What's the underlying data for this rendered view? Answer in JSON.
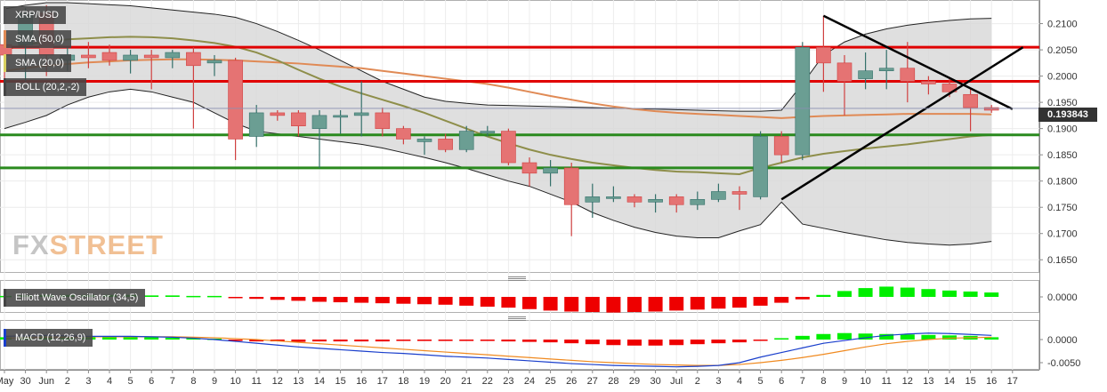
{
  "chart_data": [
    {
      "type": "candlestick",
      "pair": "XRP/USD",
      "indicators": [
        "SMA (50,0)",
        "SMA (20,0)",
        "BOLL (20,2,-2)"
      ],
      "ylim": [
        0.1625,
        0.2145
      ],
      "y_ticks": [
        "0.2100",
        "0.2050",
        "0.2000",
        "0.1950",
        "0.1900",
        "0.1850",
        "0.1800",
        "0.1750",
        "0.1700",
        "0.1650"
      ],
      "x_ticks": [
        "May",
        "30",
        "Jun",
        "2",
        "3",
        "4",
        "5",
        "6",
        "7",
        "8",
        "9",
        "10",
        "11",
        "12",
        "13",
        "14",
        "15",
        "16",
        "17",
        "18",
        "19",
        "20",
        "21",
        "22",
        "23",
        "24",
        "25",
        "26",
        "27",
        "28",
        "29",
        "30",
        "Jul",
        "2",
        "3",
        "4",
        "5",
        "6",
        "7",
        "8",
        "9",
        "10",
        "11",
        "12",
        "13",
        "14",
        "15",
        "16",
        "17"
      ],
      "last_price": "0.193843",
      "candles": [
        {
          "o": 0.206,
          "h": 0.2085,
          "l": 0.1965,
          "c": 0.204
        },
        {
          "o": 0.206,
          "h": 0.213,
          "l": 0.199,
          "c": 0.212
        },
        {
          "o": 0.212,
          "h": 0.2135,
          "l": 0.2,
          "c": 0.204
        },
        {
          "o": 0.203,
          "h": 0.2055,
          "l": 0.201,
          "c": 0.204
        },
        {
          "o": 0.204,
          "h": 0.2065,
          "l": 0.2015,
          "c": 0.2035
        },
        {
          "o": 0.2045,
          "h": 0.206,
          "l": 0.202,
          "c": 0.203
        },
        {
          "o": 0.203,
          "h": 0.205,
          "l": 0.2005,
          "c": 0.204
        },
        {
          "o": 0.204,
          "h": 0.205,
          "l": 0.1975,
          "c": 0.2035
        },
        {
          "o": 0.2035,
          "h": 0.205,
          "l": 0.2015,
          "c": 0.2045
        },
        {
          "o": 0.2045,
          "h": 0.2055,
          "l": 0.19,
          "c": 0.202
        },
        {
          "o": 0.2025,
          "h": 0.204,
          "l": 0.2,
          "c": 0.203
        },
        {
          "o": 0.203,
          "h": 0.2035,
          "l": 0.184,
          "c": 0.188
        },
        {
          "o": 0.1885,
          "h": 0.1945,
          "l": 0.1865,
          "c": 0.193
        },
        {
          "o": 0.193,
          "h": 0.1935,
          "l": 0.1915,
          "c": 0.1925
        },
        {
          "o": 0.193,
          "h": 0.1935,
          "l": 0.1885,
          "c": 0.1905
        },
        {
          "o": 0.19,
          "h": 0.1935,
          "l": 0.1825,
          "c": 0.1925
        },
        {
          "o": 0.1925,
          "h": 0.1935,
          "l": 0.189,
          "c": 0.1925
        },
        {
          "o": 0.1925,
          "h": 0.199,
          "l": 0.1885,
          "c": 0.193
        },
        {
          "o": 0.193,
          "h": 0.194,
          "l": 0.1885,
          "c": 0.19
        },
        {
          "o": 0.19,
          "h": 0.1905,
          "l": 0.187,
          "c": 0.188
        },
        {
          "o": 0.1875,
          "h": 0.1885,
          "l": 0.185,
          "c": 0.188
        },
        {
          "o": 0.188,
          "h": 0.189,
          "l": 0.1855,
          "c": 0.186
        },
        {
          "o": 0.186,
          "h": 0.1905,
          "l": 0.1855,
          "c": 0.1895
        },
        {
          "o": 0.1895,
          "h": 0.1905,
          "l": 0.1885,
          "c": 0.1895
        },
        {
          "o": 0.1895,
          "h": 0.19,
          "l": 0.183,
          "c": 0.1835
        },
        {
          "o": 0.1835,
          "h": 0.1845,
          "l": 0.179,
          "c": 0.1815
        },
        {
          "o": 0.1815,
          "h": 0.184,
          "l": 0.179,
          "c": 0.1825
        },
        {
          "o": 0.1825,
          "h": 0.1835,
          "l": 0.1695,
          "c": 0.1755
        },
        {
          "o": 0.176,
          "h": 0.1795,
          "l": 0.173,
          "c": 0.177
        },
        {
          "o": 0.177,
          "h": 0.179,
          "l": 0.176,
          "c": 0.177
        },
        {
          "o": 0.177,
          "h": 0.1775,
          "l": 0.175,
          "c": 0.176
        },
        {
          "o": 0.176,
          "h": 0.1775,
          "l": 0.174,
          "c": 0.1765
        },
        {
          "o": 0.177,
          "h": 0.1775,
          "l": 0.174,
          "c": 0.1755
        },
        {
          "o": 0.1755,
          "h": 0.178,
          "l": 0.1745,
          "c": 0.1765
        },
        {
          "o": 0.1765,
          "h": 0.1795,
          "l": 0.176,
          "c": 0.178
        },
        {
          "o": 0.178,
          "h": 0.179,
          "l": 0.1745,
          "c": 0.1775
        },
        {
          "o": 0.177,
          "h": 0.1895,
          "l": 0.1765,
          "c": 0.1885
        },
        {
          "o": 0.1885,
          "h": 0.1895,
          "l": 0.1835,
          "c": 0.185
        },
        {
          "o": 0.185,
          "h": 0.2065,
          "l": 0.184,
          "c": 0.2055
        },
        {
          "o": 0.2055,
          "h": 0.2115,
          "l": 0.197,
          "c": 0.2025
        },
        {
          "o": 0.2025,
          "h": 0.204,
          "l": 0.1925,
          "c": 0.199
        },
        {
          "o": 0.1995,
          "h": 0.2045,
          "l": 0.1975,
          "c": 0.201
        },
        {
          "o": 0.201,
          "h": 0.205,
          "l": 0.1975,
          "c": 0.2015
        },
        {
          "o": 0.2015,
          "h": 0.2065,
          "l": 0.195,
          "c": 0.199
        },
        {
          "o": 0.199,
          "h": 0.2,
          "l": 0.1965,
          "c": 0.1985
        },
        {
          "o": 0.1985,
          "h": 0.1995,
          "l": 0.196,
          "c": 0.197
        },
        {
          "o": 0.1965,
          "h": 0.1975,
          "l": 0.1895,
          "c": 0.194
        },
        {
          "o": 0.194,
          "h": 0.1945,
          "l": 0.193,
          "c": 0.1935
        }
      ],
      "bollinger": {
        "upper": [
          0.2128,
          0.2135,
          0.214,
          0.214,
          0.2138,
          0.2136,
          0.2134,
          0.213,
          0.2126,
          0.2122,
          0.2118,
          0.2112,
          0.21,
          0.2085,
          0.2068,
          0.205,
          0.203,
          0.201,
          0.199,
          0.1975,
          0.196,
          0.1952,
          0.1948,
          0.1945,
          0.1944,
          0.1943,
          0.1942,
          0.1941,
          0.194,
          0.1939,
          0.1938,
          0.1937,
          0.1936,
          0.1935,
          0.1934,
          0.1933,
          0.1933,
          0.1935,
          0.1985,
          0.204,
          0.2065,
          0.208,
          0.209,
          0.2097,
          0.2102,
          0.2106,
          0.2109,
          0.211
        ],
        "middle": [
          0.205,
          0.206,
          0.2065,
          0.207,
          0.2072,
          0.2074,
          0.2075,
          0.2074,
          0.2072,
          0.2068,
          0.2063,
          0.2056,
          0.2045,
          0.203,
          0.2012,
          0.1995,
          0.198,
          0.1967,
          0.1955,
          0.1943,
          0.193,
          0.1915,
          0.19,
          0.1885,
          0.1872,
          0.186,
          0.185,
          0.1842,
          0.1835,
          0.183,
          0.1825,
          0.1821,
          0.1818,
          0.1817,
          0.1815,
          0.1813,
          0.1825,
          0.1835,
          0.1845,
          0.1852,
          0.1857,
          0.1862,
          0.1866,
          0.187,
          0.1875,
          0.188,
          0.1885,
          0.1888
        ],
        "lower": [
          0.19,
          0.1912,
          0.1925,
          0.1945,
          0.196,
          0.197,
          0.1975,
          0.197,
          0.196,
          0.195,
          0.193,
          0.191,
          0.1895,
          0.189,
          0.1885,
          0.188,
          0.1875,
          0.187,
          0.1863,
          0.1854,
          0.1845,
          0.1835,
          0.1824,
          0.1812,
          0.18,
          0.179,
          0.1775,
          0.176,
          0.174,
          0.1725,
          0.1712,
          0.1702,
          0.1695,
          0.1692,
          0.1692,
          0.1705,
          0.1717,
          0.176,
          0.1718,
          0.171,
          0.1702,
          0.1695,
          0.1688,
          0.1683,
          0.168,
          0.1678,
          0.168,
          0.1685
        ]
      },
      "sma_50": [
        0.201,
        0.2015,
        0.202,
        0.2023,
        0.2026,
        0.2028,
        0.203,
        0.2031,
        0.2032,
        0.2032,
        0.2031,
        0.203,
        0.2028,
        0.2026,
        0.2024,
        0.2021,
        0.2018,
        0.2015,
        0.201,
        0.2005,
        0.2,
        0.1995,
        0.199,
        0.1985,
        0.1978,
        0.197,
        0.1962,
        0.1955,
        0.1948,
        0.1942,
        0.1937,
        0.1933,
        0.193,
        0.1928,
        0.1926,
        0.1924,
        0.1922,
        0.192,
        0.1922,
        0.1924,
        0.1925,
        0.1926,
        0.1927,
        0.1928,
        0.1928,
        0.1928,
        0.1928,
        0.1927
      ],
      "horizontal_levels": [
        0.2055,
        0.199,
        0.1888,
        0.1825
      ],
      "trendlines": [
        {
          "x1": 39,
          "y1": 0.2115,
          "x2": 48,
          "y2": 0.1937
        },
        {
          "x1": 37,
          "y1": 0.1765,
          "x2": 48.5,
          "y2": 0.2055
        }
      ]
    },
    {
      "type": "bar",
      "title": "Elliott Wave Oscillator (34,5)",
      "y_ticks": [
        "0.0000"
      ],
      "values": [
        0.0002,
        0.0003,
        0.0004,
        0.0004,
        0.0004,
        0.0004,
        0.0004,
        0.0003,
        0.0003,
        0.0002,
        0.0002,
        -0.0002,
        -0.0004,
        -0.0006,
        -0.0008,
        -0.001,
        -0.0011,
        -0.0012,
        -0.0013,
        -0.0014,
        -0.0015,
        -0.0016,
        -0.0018,
        -0.002,
        -0.0022,
        -0.0025,
        -0.0028,
        -0.003,
        -0.0031,
        -0.0032,
        -0.0031,
        -0.003,
        -0.0028,
        -0.0026,
        -0.0024,
        -0.0022,
        -0.0018,
        -0.0012,
        -0.0005,
        0.0004,
        0.0012,
        0.0018,
        0.0021,
        0.0019,
        0.0016,
        0.0013,
        0.0011,
        0.0009
      ]
    },
    {
      "type": "bar+line",
      "title": "MACD (12,26,9)",
      "y_ticks": [
        "0.0000",
        "-0.0050"
      ],
      "histogram": [
        0.0005,
        0.0006,
        0.0007,
        0.0007,
        0.0007,
        0.0007,
        0.0006,
        0.0005,
        0.0004,
        0.0003,
        0.0002,
        -0.0003,
        -0.0004,
        -0.0004,
        -0.0005,
        -0.0004,
        -0.0004,
        -0.0004,
        -0.0004,
        -0.0003,
        -0.0003,
        -0.0003,
        -0.0003,
        -0.0003,
        -0.0004,
        -0.0005,
        -0.0006,
        -0.0008,
        -0.001,
        -0.0012,
        -0.0013,
        -0.0013,
        -0.0012,
        -0.001,
        -0.0008,
        -0.0006,
        -0.0001,
        0.0003,
        0.0008,
        0.0012,
        0.0014,
        0.0013,
        0.0012,
        0.0011,
        0.001,
        0.0009,
        0.0008,
        0.0005
      ],
      "macd_line": [
        0.0007,
        0.0008,
        0.0009,
        0.0008,
        0.0007,
        0.0007,
        0.0007,
        0.0006,
        0.0005,
        0.0003,
        0.0,
        -0.0004,
        -0.0008,
        -0.0012,
        -0.0016,
        -0.0019,
        -0.0022,
        -0.0025,
        -0.0028,
        -0.003,
        -0.0033,
        -0.0036,
        -0.0038,
        -0.004,
        -0.0043,
        -0.0046,
        -0.0049,
        -0.0052,
        -0.0054,
        -0.0056,
        -0.0057,
        -0.0058,
        -0.0059,
        -0.0058,
        -0.0056,
        -0.005,
        -0.0038,
        -0.0028,
        -0.0018,
        -0.0008,
        -0.0002,
        0.0004,
        0.0009,
        0.0012,
        0.0014,
        0.0013,
        0.0011,
        0.0009
      ],
      "signal_line": [
        0.0003,
        0.0004,
        0.0005,
        0.0005,
        0.0006,
        0.0006,
        0.0006,
        0.0006,
        0.0006,
        0.0005,
        0.0004,
        0.0002,
        0.0,
        -0.0003,
        -0.0006,
        -0.0009,
        -0.0012,
        -0.0015,
        -0.0018,
        -0.0021,
        -0.0024,
        -0.0027,
        -0.003,
        -0.0033,
        -0.0036,
        -0.0039,
        -0.0042,
        -0.0045,
        -0.0048,
        -0.005,
        -0.0052,
        -0.0054,
        -0.0055,
        -0.0056,
        -0.0056,
        -0.0054,
        -0.005,
        -0.0045,
        -0.0039,
        -0.0032,
        -0.0024,
        -0.0016,
        -0.0009,
        -0.0004,
        0.0,
        0.0003,
        0.0004,
        0.0005
      ]
    }
  ],
  "legends": {
    "pair": "XRP/USD",
    "sma50": "SMA (50,0)",
    "sma20": "SMA (20,0)",
    "boll": "BOLL (20,2,-2)",
    "ewo": "Elliott Wave Oscillator (34,5)",
    "macd": "MACD (12,26,9)"
  },
  "watermark": {
    "part1": "FX",
    "part2": "STREET"
  },
  "colors": {
    "bull": "#6b9e93",
    "bear": "#e57373",
    "bull_wick": "#34706a",
    "bear_wick": "#d04040",
    "band_fill": "#d9d9d9",
    "band_line": "#222222",
    "sma50": "#e08a55",
    "sma20": "#8e8e4a",
    "resistance": "#e00000",
    "support": "#2a8a1e",
    "trendline": "#000000",
    "osc_pos": "#00ee00",
    "osc_neg": "#ee0000",
    "macd_line": "#1a3fcc",
    "signal_line": "#f08a20"
  }
}
